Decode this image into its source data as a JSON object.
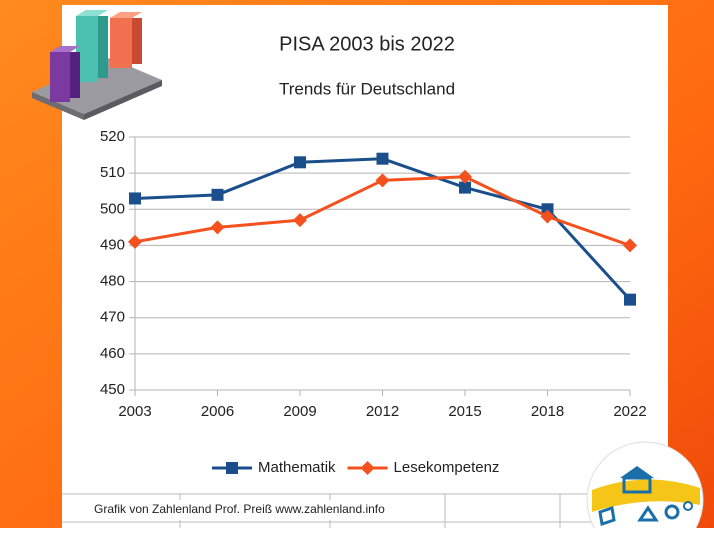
{
  "chart_data": {
    "type": "line",
    "title": "PISA 2003 bis 2022",
    "subtitle": "Trends für Deutschland",
    "categories": [
      "2003",
      "2006",
      "2009",
      "2012",
      "2015",
      "2018",
      "2022"
    ],
    "series": [
      {
        "name": "Mathematik",
        "color": "#1b4f8c",
        "values": [
          503,
          504,
          513,
          514,
          506,
          500,
          475
        ]
      },
      {
        "name": "Lesekompetenz",
        "color": "#f4511e",
        "values": [
          491,
          495,
          497,
          508,
          509,
          498,
          490
        ]
      }
    ],
    "ylim": [
      450,
      520
    ],
    "yticks": [
      450,
      460,
      470,
      480,
      490,
      500,
      510,
      520
    ],
    "grid": true,
    "legend": "bottom",
    "source": "Grafik von Zahlenland Prof. Preiß www.zahlenland.info"
  }
}
